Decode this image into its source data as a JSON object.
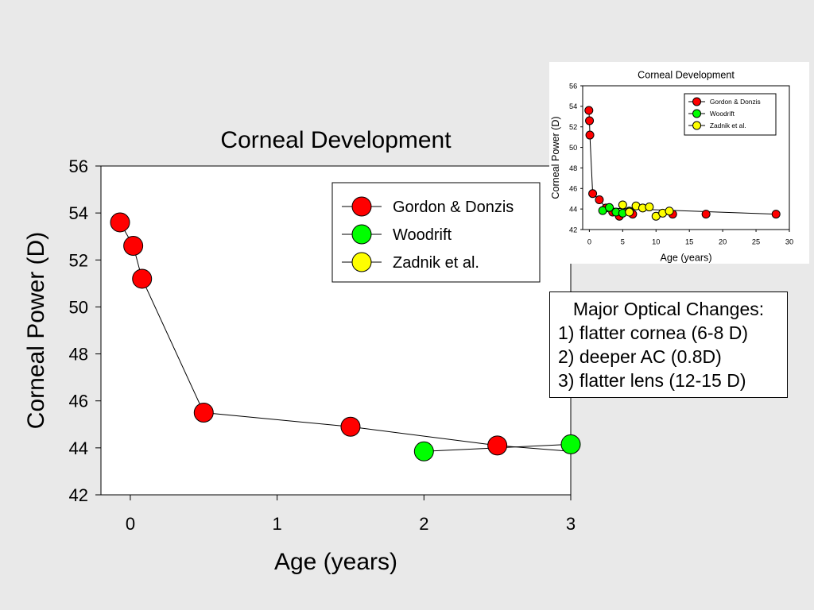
{
  "chart_data": [
    {
      "type": "line",
      "title": "Corneal Development",
      "xlabel": "Age (years)",
      "ylabel": "Corneal Power (D)",
      "xlim": [
        -0.2,
        3
      ],
      "ylim": [
        42,
        56
      ],
      "xticks": [
        0,
        1,
        2,
        3
      ],
      "yticks": [
        42,
        44,
        46,
        48,
        50,
        52,
        54,
        56
      ],
      "legend_position": "top-right",
      "series": [
        {
          "name": "Gordon & Donzis",
          "color": "#ff0000",
          "x": [
            -0.07,
            0.02,
            0.08,
            0.5,
            1.5,
            2.5
          ],
          "y": [
            53.6,
            52.6,
            51.2,
            45.5,
            44.9,
            44.1
          ]
        },
        {
          "name": "Woodrift",
          "color": "#00ff00",
          "x": [
            2.0,
            3.0
          ],
          "y": [
            43.85,
            44.15
          ]
        },
        {
          "name": "Zadnik et al.",
          "color": "#ffff00",
          "x": [],
          "y": []
        }
      ],
      "connector": {
        "x": [
          -0.07,
          0.02,
          0.08,
          0.5,
          1.5,
          2.5,
          3.0
        ],
        "y": [
          53.6,
          52.6,
          51.2,
          45.5,
          44.9,
          44.1,
          43.85
        ]
      },
      "connector2": {
        "x": [
          2.0,
          3.0
        ],
        "y": [
          43.85,
          44.15
        ]
      }
    },
    {
      "type": "line",
      "title": "Corneal Development",
      "xlabel": "Age (years)",
      "ylabel": "Corneal Power (D)",
      "xlim": [
        -1,
        30
      ],
      "ylim": [
        42,
        56
      ],
      "xticks": [
        0,
        5,
        10,
        15,
        20,
        25,
        30
      ],
      "yticks": [
        42,
        44,
        46,
        48,
        50,
        52,
        54,
        56
      ],
      "legend_position": "top-right",
      "series": [
        {
          "name": "Gordon & Donzis",
          "color": "#ff0000",
          "x": [
            -0.07,
            0.02,
            0.08,
            0.5,
            1.5,
            2.5,
            3.5,
            4.5,
            6.5,
            12.5,
            17.5,
            28
          ],
          "y": [
            53.6,
            52.6,
            51.2,
            45.5,
            44.9,
            44.1,
            43.7,
            43.3,
            43.5,
            43.5,
            43.5,
            43.5
          ]
        },
        {
          "name": "Woodrift",
          "color": "#00ff00",
          "x": [
            2,
            3,
            4,
            5,
            6
          ],
          "y": [
            43.85,
            44.15,
            43.7,
            43.6,
            43.8
          ]
        },
        {
          "name": "Zadnik et al.",
          "color": "#ffff00",
          "x": [
            5,
            6,
            7,
            8,
            9,
            10,
            11,
            12
          ],
          "y": [
            44.4,
            43.7,
            44.3,
            44.1,
            44.2,
            43.3,
            43.6,
            43.8
          ]
        }
      ],
      "connector": {
        "x": [
          -0.07,
          0.02,
          0.08,
          0.5,
          1.5,
          2.5,
          28
        ],
        "y": [
          53.6,
          52.6,
          51.2,
          45.5,
          44.9,
          44.1,
          43.5
        ]
      }
    }
  ],
  "notes": {
    "title": "Major Optical Changes:",
    "items": [
      "1) flatter cornea (6-8 D)",
      "2) deeper AC (0.8D)",
      "3) flatter lens (12-15 D)"
    ]
  }
}
